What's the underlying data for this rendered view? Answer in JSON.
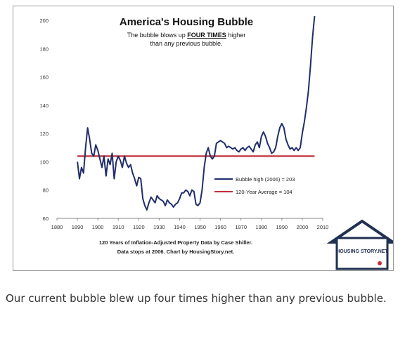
{
  "chart_data": {
    "type": "line",
    "title": "America's Housing Bubble",
    "subtitle_pre": "The bubble blows up ",
    "subtitle_emph": "FOUR TIMES",
    "subtitle_post": " higher",
    "subtitle_line2": "than any previous bubble.",
    "xlim": [
      1880,
      2010
    ],
    "ylim": [
      60,
      200
    ],
    "x_ticks": [
      "1880",
      "1890",
      "1900",
      "1910",
      "1920",
      "1930",
      "1940",
      "1950",
      "1960",
      "1970",
      "1980",
      "1990",
      "2000",
      "2010"
    ],
    "y_ticks": [
      "60",
      "80",
      "100",
      "120",
      "140",
      "160",
      "180",
      "200"
    ],
    "series": [
      {
        "name": "Bubble high (2006) = 203",
        "color": "#1f2d6b",
        "x": [
          1890,
          1891,
          1892,
          1893,
          1894,
          1895,
          1896,
          1897,
          1898,
          1899,
          1900,
          1901,
          1902,
          1903,
          1904,
          1905,
          1906,
          1907,
          1908,
          1909,
          1910,
          1911,
          1912,
          1913,
          1914,
          1915,
          1916,
          1917,
          1918,
          1919,
          1920,
          1921,
          1922,
          1923,
          1924,
          1925,
          1926,
          1927,
          1928,
          1929,
          1930,
          1931,
          1932,
          1933,
          1934,
          1935,
          1936,
          1937,
          1938,
          1939,
          1940,
          1941,
          1942,
          1943,
          1944,
          1945,
          1946,
          1947,
          1948,
          1949,
          1950,
          1951,
          1952,
          1953,
          1954,
          1955,
          1956,
          1957,
          1958,
          1959,
          1960,
          1961,
          1962,
          1963,
          1964,
          1965,
          1966,
          1967,
          1968,
          1969,
          1970,
          1971,
          1972,
          1973,
          1974,
          1975,
          1976,
          1977,
          1978,
          1979,
          1980,
          1981,
          1982,
          1983,
          1984,
          1985,
          1986,
          1987,
          1988,
          1989,
          1990,
          1991,
          1992,
          1993,
          1994,
          1995,
          1996,
          1997,
          1998,
          1999,
          2000,
          2001,
          2002,
          2003,
          2004,
          2005,
          2006
        ],
        "y": [
          100,
          88,
          96,
          92,
          110,
          124,
          116,
          106,
          104,
          112,
          108,
          102,
          96,
          104,
          90,
          102,
          98,
          106,
          88,
          100,
          104,
          101,
          96,
          104,
          99,
          96,
          98,
          92,
          88,
          83,
          89,
          88,
          74,
          69,
          66,
          71,
          75,
          73,
          71,
          76,
          74,
          73,
          72,
          69,
          73,
          71,
          70,
          68,
          70,
          71,
          74,
          78,
          78,
          80,
          79,
          76,
          80,
          79,
          70,
          69,
          71,
          80,
          96,
          106,
          110,
          104,
          102,
          104,
          113,
          114,
          115,
          114,
          113,
          110,
          111,
          110,
          109,
          110,
          108,
          107,
          109,
          110,
          108,
          110,
          111,
          109,
          107,
          112,
          114,
          110,
          118,
          121,
          118,
          113,
          110,
          106,
          107,
          110,
          118,
          124,
          127,
          124,
          116,
          112,
          109,
          110,
          108,
          110,
          108,
          110,
          120,
          128,
          138,
          150,
          168,
          188,
          203
        ]
      },
      {
        "name": "120-Year Average = 104",
        "color": "#c0303a",
        "x": [
          1890,
          2006
        ],
        "y": [
          104,
          104
        ]
      }
    ],
    "source_line1": "120 Years of Inflation-Adjusted Property Data by Case Shiller.",
    "source_line2": "Data stops at 2006. Chart by HousingStory.net.",
    "logo_text": "HOUSING STORY.NET"
  },
  "caption": "Our current bubble blew up four times higher than any previous bubble."
}
